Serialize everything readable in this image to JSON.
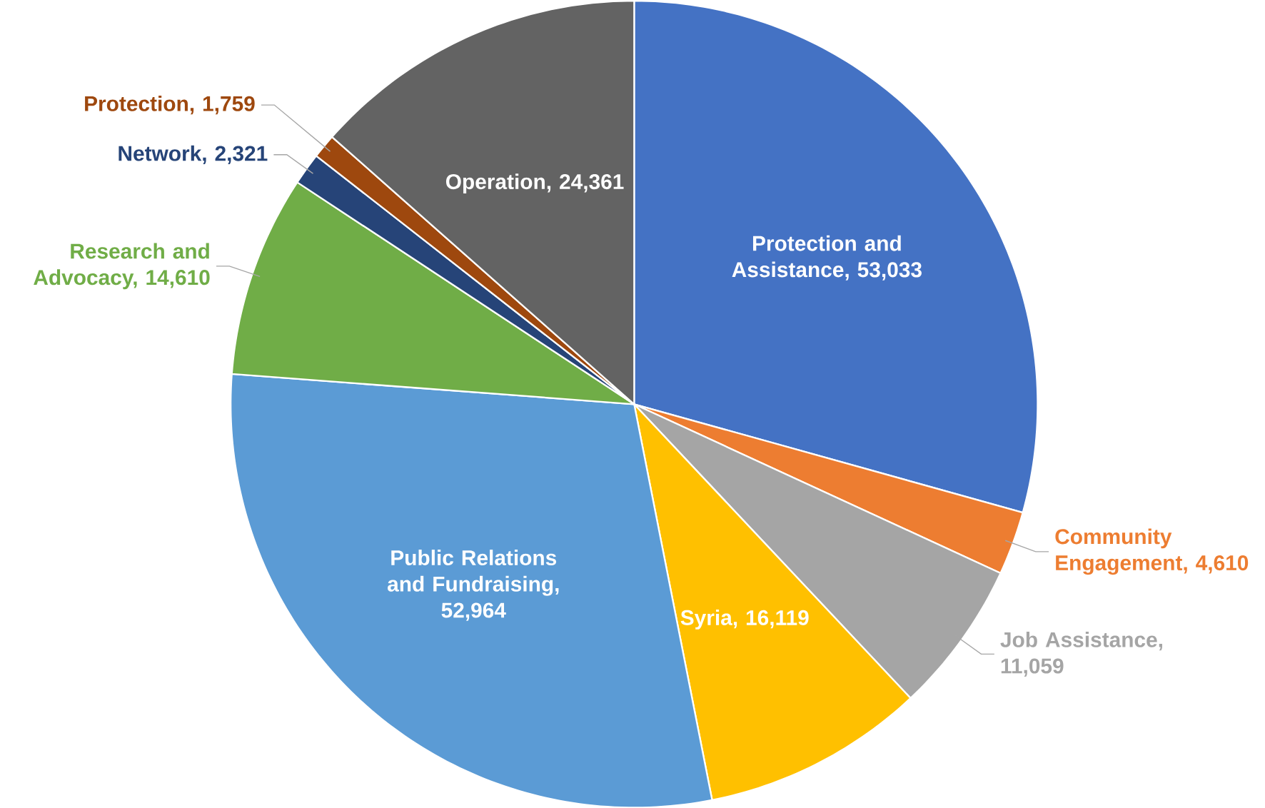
{
  "chart_data": {
    "type": "pie",
    "categories": [
      "Protection and Assistance, 53,033",
      "Community Engagement, 4,610",
      "Job Assistance, 11,059",
      "Syria, 16,119",
      "Public Relations and Fundraising, 52,964",
      "Research and Advocacy, 14,610",
      "Network, 2,321",
      "Protection, 1,759",
      "Operation, 24,361"
    ],
    "values": [
      53033,
      4610,
      11059,
      16119,
      52964,
      14610,
      2321,
      1759,
      24361
    ],
    "colors": [
      "#4472c4",
      "#ed7d31",
      "#a5a5a5",
      "#ffc000",
      "#5b9bd5",
      "#70ad47",
      "#264478",
      "#9e480e",
      "#636363"
    ]
  }
}
